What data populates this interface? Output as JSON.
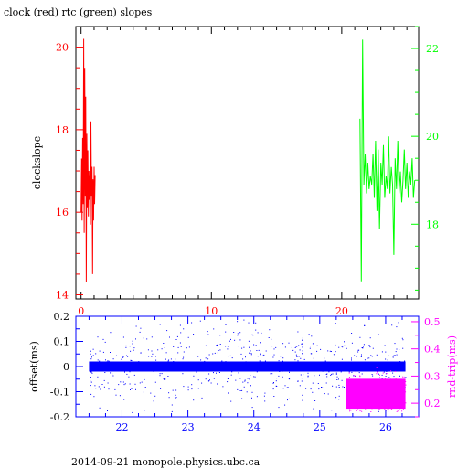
{
  "page": {
    "title": "clock (red) rtc (green) slopes",
    "footer": "2014-09-21  monopole.physics.ubc.ca"
  },
  "chart_data": [
    {
      "type": "line",
      "ylabel": "clockslope",
      "x_range": [
        -0.4,
        25.9
      ],
      "x_ticks": [
        0,
        10,
        20
      ],
      "left_axis": {
        "range": [
          13.9,
          20.5
        ],
        "ticks": [
          14,
          16,
          18,
          20
        ],
        "color": "#ff0000"
      },
      "right_axis": {
        "range": [
          16.3,
          22.5
        ],
        "ticks": [
          18,
          20,
          22
        ],
        "color": "#00ff00"
      },
      "series": [
        {
          "axis": "left",
          "color": "#ff0000",
          "x": [
            0.0,
            0.04,
            0.08,
            0.12,
            0.16,
            0.2,
            0.24,
            0.28,
            0.32,
            0.36,
            0.4,
            0.44,
            0.48,
            0.52,
            0.56,
            0.6,
            0.64,
            0.68,
            0.72,
            0.76,
            0.8,
            0.84,
            0.88,
            0.92,
            0.96,
            1.0,
            1.04,
            1.08
          ],
          "y": [
            16.0,
            17.3,
            15.8,
            17.8,
            16.2,
            20.2,
            15.5,
            19.5,
            16.4,
            18.8,
            14.3,
            17.9,
            16.1,
            17.5,
            15.9,
            17.0,
            16.3,
            16.9,
            15.7,
            18.2,
            16.4,
            17.1,
            14.5,
            16.8,
            15.8,
            17.1,
            16.2,
            16.9
          ]
        },
        {
          "axis": "right",
          "color": "#00ff00",
          "x": [
            21.4,
            21.5,
            21.6,
            21.7,
            21.8,
            21.9,
            22.0,
            22.1,
            22.2,
            22.3,
            22.4,
            22.5,
            22.6,
            22.7,
            22.8,
            22.9,
            23.0,
            23.1,
            23.2,
            23.3,
            23.4,
            23.5,
            23.6,
            23.7,
            23.8,
            23.9,
            24.0,
            24.1,
            24.2,
            24.3,
            24.4,
            24.5,
            24.6,
            24.7,
            24.8,
            24.9,
            25.0,
            25.1,
            25.2,
            25.3,
            25.4,
            25.5,
            25.6
          ],
          "y": [
            20.4,
            16.7,
            22.2,
            18.9,
            19.6,
            18.7,
            19.4,
            18.8,
            19.1,
            18.9,
            19.6,
            18.6,
            19.9,
            18.3,
            19.7,
            17.9,
            19.4,
            18.9,
            19.8,
            18.6,
            19.1,
            18.8,
            20.0,
            18.7,
            19.3,
            18.9,
            17.3,
            19.5,
            18.8,
            19.9,
            18.7,
            19.2,
            18.5,
            19.0,
            19.7,
            18.8,
            19.4,
            18.6,
            19.2,
            18.9,
            19.5,
            18.6,
            19.0
          ]
        }
      ]
    },
    {
      "type": "scatter",
      "ylabel_left": "offset(ms)",
      "ylabel_right": "rnd-trip(ms)",
      "x_range": [
        21.3,
        26.5
      ],
      "x_ticks": [
        22,
        23,
        24,
        25,
        26
      ],
      "left_axis": {
        "range": [
          -0.2,
          0.2
        ],
        "ticks": [
          -0.2,
          -0.1,
          0,
          0.1,
          0.2
        ],
        "color": "#0000ff"
      },
      "right_axis": {
        "range": [
          0.15,
          0.52
        ],
        "ticks": [
          0.2,
          0.3,
          0.4,
          0.5
        ],
        "color": "#ff00ff"
      },
      "series": [
        {
          "axis": "left",
          "color": "#0000ff",
          "x_span": [
            21.5,
            26.3
          ],
          "y_band": [
            -0.02,
            0.02
          ],
          "y_spread": [
            -0.19,
            0.19
          ]
        },
        {
          "axis": "right",
          "color": "#ff00ff",
          "x_span": [
            25.4,
            26.3
          ],
          "y_band": [
            0.18,
            0.29
          ],
          "y_spread": [
            0.17,
            0.36
          ]
        }
      ]
    }
  ]
}
